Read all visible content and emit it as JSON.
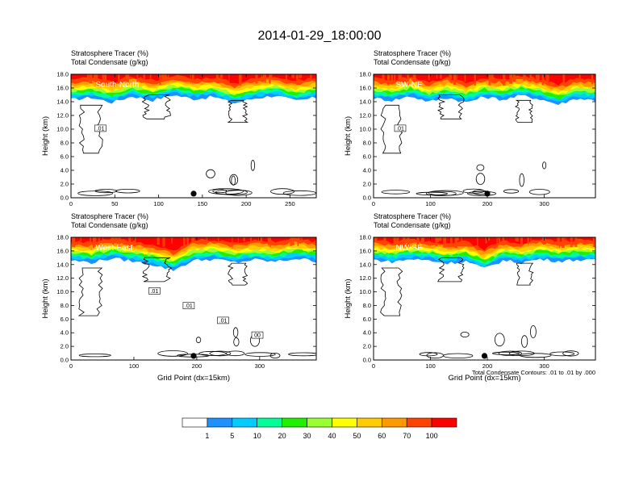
{
  "figure": {
    "title": "2014-01-29_18:00:00",
    "note": "Total Condensate Contours: .01 to .01 by .000",
    "colors": {
      "white": "#ffffff",
      "c1": "#1e90ff",
      "c2": "#00ccff",
      "c3": "#00ff99",
      "c4": "#22ee00",
      "c5": "#99ff33",
      "c6": "#ffff00",
      "c7": "#ffcc00",
      "c8": "#ff9900",
      "c9": "#ff4400",
      "c10": "#ff0000"
    }
  },
  "colorbar": {
    "labels": [
      "1",
      "5",
      "10",
      "20",
      "30",
      "40",
      "50",
      "60",
      "70",
      "100"
    ]
  },
  "chart_data": [
    {
      "type": "heatmap",
      "panel": "South-North",
      "header_line1": "Stratosphere Tracer   (%)",
      "header_line2": "Total Condensate   (g/kg)",
      "xlabel": "",
      "ylabel": "Height (km)",
      "xlim": [
        0,
        280
      ],
      "ylim": [
        0,
        18
      ],
      "xticks": [
        "0",
        "50",
        "100",
        "150",
        "200",
        "250"
      ],
      "yticks": [
        "0.0",
        "2.0",
        "4.0",
        "6.0",
        "8.0",
        "10.0",
        "12.0",
        "14.0",
        "16.0",
        "18.0"
      ],
      "contour_labels": [
        ".01"
      ],
      "marker_x": 140,
      "tropopause_km": [
        14.3,
        14.6,
        13.9,
        14.8,
        14.2,
        15.0,
        14.4,
        14.7,
        13.8,
        14.5,
        14.9,
        14.1,
        14.6
      ]
    },
    {
      "type": "heatmap",
      "panel": "SW-NE",
      "header_line1": "Stratosphere Tracer   (%)",
      "header_line2": "Total Condensate   (g/kg)",
      "xlabel": "",
      "ylabel": "Height (km)",
      "xlim": [
        0,
        390
      ],
      "ylim": [
        0,
        18
      ],
      "xticks": [
        "0",
        "100",
        "200",
        "300"
      ],
      "yticks": [
        "0.0",
        "2.0",
        "4.0",
        "6.0",
        "8.0",
        "10.0",
        "12.0",
        "14.0",
        "16.0",
        "18.0"
      ],
      "contour_labels": [
        ".01"
      ],
      "marker_x": 200,
      "tropopause_km": [
        14.5,
        14.2,
        14.8,
        14.0,
        14.6,
        13.9,
        14.7,
        14.3,
        14.9,
        14.4,
        13.6,
        14.5,
        14.2
      ]
    },
    {
      "type": "heatmap",
      "panel": "West-East",
      "header_line1": "Stratosphere Tracer   (%)",
      "header_line2": "Total Condensate   (g/kg)",
      "xlabel": "Grid Point (dx=15km)",
      "ylabel": "Height (km)",
      "xlim": [
        0,
        390
      ],
      "ylim": [
        0,
        18
      ],
      "xticks": [
        "0",
        "100",
        "200",
        "300"
      ],
      "yticks": [
        "0.0",
        "2.0",
        "4.0",
        "6.0",
        "8.0",
        "10.0",
        "12.0",
        "14.0",
        "16.0",
        "18.0"
      ],
      "contour_labels": [
        ".01",
        ".01",
        ".01",
        "00"
      ],
      "marker_x": 195,
      "tropopause_km": [
        14.6,
        14.3,
        14.9,
        14.5,
        14.0,
        13.2,
        14.6,
        14.8,
        14.3,
        14.7,
        14.4,
        14.9,
        14.5
      ]
    },
    {
      "type": "heatmap",
      "panel": "NW-SE",
      "header_line1": "Stratosphere Tracer   (%)",
      "header_line2": "Total Condensate   (g/kg)",
      "xlabel": "Grid Point (dx=15km)",
      "ylabel": "Height (km)",
      "xlim": [
        0,
        390
      ],
      "ylim": [
        0,
        18
      ],
      "xticks": [
        "0",
        "100",
        "200",
        "300"
      ],
      "yticks": [
        "0.0",
        "2.0",
        "4.0",
        "6.0",
        "8.0",
        "10.0",
        "12.0",
        "14.0",
        "16.0",
        "18.0"
      ],
      "contour_labels": [],
      "marker_x": 195,
      "tropopause_km": [
        14.7,
        14.4,
        14.8,
        14.6,
        14.2,
        14.5,
        13.4,
        14.6,
        14.3,
        14.8,
        14.5,
        14.7,
        14.6
      ]
    }
  ]
}
